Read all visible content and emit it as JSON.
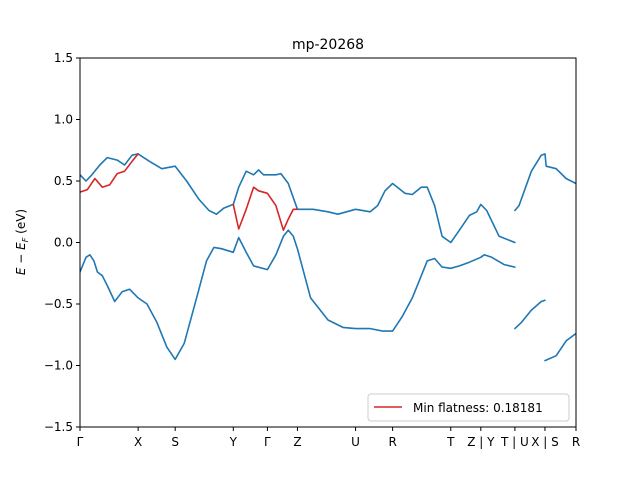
{
  "chart_data": {
    "type": "line",
    "title": "mp-20268",
    "xlabel": "",
    "ylabel": "E − E_F (eV)",
    "ylabel_parts": {
      "main": "E − E",
      "sub": "F",
      "unit": " (eV)"
    },
    "ylim": [
      -1.5,
      1.5
    ],
    "xlim": [
      0,
      1
    ],
    "y_ticks": [
      -1.5,
      -1.0,
      -0.5,
      0.0,
      0.5,
      1.0,
      1.5
    ],
    "y_tick_labels": [
      "−1.5",
      "−1.0",
      "−0.5",
      "0.0",
      "0.5",
      "1.0",
      "1.5"
    ],
    "k_ticks": [
      {
        "label": "Γ",
        "x": 0.0
      },
      {
        "label": "X",
        "x": 0.1172
      },
      {
        "label": "S",
        "x": 0.1919
      },
      {
        "label": "Y",
        "x": 0.3091
      },
      {
        "label": "Γ",
        "x": 0.3778
      },
      {
        "label": "Z",
        "x": 0.4384
      },
      {
        "label": "U",
        "x": 0.5556
      },
      {
        "label": "R",
        "x": 0.6303
      },
      {
        "label": "T",
        "x": 0.7475
      },
      {
        "label": "Z | Y",
        "x": 0.8081
      },
      {
        "label": "T | U",
        "x": 0.8768
      },
      {
        "label": "X | S",
        "x": 0.9374
      },
      {
        "label": "R",
        "x": 1.0
      }
    ],
    "colors": {
      "bands": "#1f77b4",
      "flat_band": "#d62728",
      "axes": "#000000"
    },
    "legend": {
      "label": "Min flatness: 0.18181",
      "placement": "lower-right"
    },
    "grid": false,
    "series": [
      {
        "color": "#1f77b4",
        "points": [
          [
            0.0,
            0.55
          ],
          [
            0.012,
            0.5
          ],
          [
            0.024,
            0.55
          ],
          [
            0.04,
            0.63
          ],
          [
            0.055,
            0.69
          ],
          [
            0.075,
            0.67
          ],
          [
            0.09,
            0.63
          ],
          [
            0.105,
            0.71
          ],
          [
            0.1172,
            0.72
          ],
          [
            0.14,
            0.66
          ],
          [
            0.165,
            0.6
          ],
          [
            0.1919,
            0.62
          ],
          [
            0.215,
            0.5
          ],
          [
            0.24,
            0.35
          ],
          [
            0.26,
            0.26
          ],
          [
            0.275,
            0.23
          ],
          [
            0.29,
            0.28
          ],
          [
            0.3091,
            0.31
          ],
          [
            0.32,
            0.45
          ],
          [
            0.335,
            0.58
          ],
          [
            0.35,
            0.55
          ],
          [
            0.36,
            0.59
          ],
          [
            0.37,
            0.55
          ],
          [
            0.3778,
            0.55
          ],
          [
            0.395,
            0.55
          ],
          [
            0.405,
            0.56
          ],
          [
            0.42,
            0.48
          ],
          [
            0.4384,
            0.27
          ],
          [
            0.47,
            0.27
          ],
          [
            0.5,
            0.25
          ],
          [
            0.52,
            0.23
          ],
          [
            0.5556,
            0.27
          ],
          [
            0.585,
            0.25
          ],
          [
            0.6,
            0.3
          ],
          [
            0.615,
            0.42
          ],
          [
            0.6303,
            0.48
          ],
          [
            0.655,
            0.4
          ],
          [
            0.67,
            0.39
          ],
          [
            0.688,
            0.45
          ],
          [
            0.7,
            0.45
          ],
          [
            0.715,
            0.3
          ],
          [
            0.73,
            0.05
          ],
          [
            0.7475,
            0.0
          ],
          [
            0.765,
            0.1
          ],
          [
            0.785,
            0.22
          ],
          [
            0.8,
            0.25
          ],
          [
            0.8081,
            0.31
          ],
          [
            0.82,
            0.26
          ],
          [
            0.845,
            0.05
          ],
          [
            0.8768,
            0.0
          ]
        ]
      },
      {
        "color": "#1f77b4",
        "points": [
          [
            0.8768,
            0.26
          ],
          [
            0.885,
            0.3
          ],
          [
            0.91,
            0.58
          ],
          [
            0.93,
            0.71
          ],
          [
            0.9374,
            0.72
          ],
          [
            0.94,
            0.62
          ],
          [
            0.96,
            0.6
          ],
          [
            0.98,
            0.52
          ],
          [
            1.0,
            0.48
          ]
        ]
      },
      {
        "color": "#1f77b4",
        "points": [
          [
            0.0,
            -0.24
          ],
          [
            0.012,
            -0.12
          ],
          [
            0.02,
            -0.1
          ],
          [
            0.028,
            -0.15
          ],
          [
            0.035,
            -0.24
          ],
          [
            0.045,
            -0.27
          ],
          [
            0.055,
            -0.35
          ],
          [
            0.07,
            -0.48
          ],
          [
            0.085,
            -0.4
          ],
          [
            0.1,
            -0.38
          ],
          [
            0.1172,
            -0.45
          ],
          [
            0.135,
            -0.5
          ],
          [
            0.155,
            -0.65
          ],
          [
            0.175,
            -0.85
          ],
          [
            0.1919,
            -0.95
          ],
          [
            0.21,
            -0.82
          ],
          [
            0.235,
            -0.45
          ],
          [
            0.255,
            -0.15
          ],
          [
            0.27,
            -0.04
          ],
          [
            0.285,
            -0.05
          ],
          [
            0.3091,
            -0.08
          ],
          [
            0.32,
            0.04
          ],
          [
            0.335,
            -0.08
          ],
          [
            0.35,
            -0.19
          ],
          [
            0.3778,
            -0.22
          ],
          [
            0.395,
            -0.1
          ],
          [
            0.41,
            0.05
          ],
          [
            0.42,
            0.1
          ],
          [
            0.43,
            0.05
          ],
          [
            0.4384,
            -0.05
          ],
          [
            0.465,
            -0.45
          ],
          [
            0.5,
            -0.63
          ],
          [
            0.53,
            -0.69
          ],
          [
            0.5556,
            -0.7
          ],
          [
            0.585,
            -0.7
          ],
          [
            0.61,
            -0.72
          ],
          [
            0.6303,
            -0.72
          ],
          [
            0.65,
            -0.6
          ],
          [
            0.67,
            -0.45
          ],
          [
            0.685,
            -0.3
          ],
          [
            0.7,
            -0.15
          ],
          [
            0.715,
            -0.13
          ],
          [
            0.73,
            -0.2
          ],
          [
            0.7475,
            -0.21
          ],
          [
            0.765,
            -0.19
          ],
          [
            0.785,
            -0.16
          ],
          [
            0.8081,
            -0.12
          ],
          [
            0.815,
            -0.1
          ],
          [
            0.83,
            -0.12
          ],
          [
            0.855,
            -0.18
          ],
          [
            0.8768,
            -0.2
          ]
        ]
      },
      {
        "color": "#1f77b4",
        "points": [
          [
            0.8768,
            -0.7
          ],
          [
            0.89,
            -0.65
          ],
          [
            0.91,
            -0.55
          ],
          [
            0.93,
            -0.48
          ],
          [
            0.9374,
            -0.47
          ]
        ]
      },
      {
        "color": "#1f77b4",
        "points": [
          [
            0.9374,
            -0.96
          ],
          [
            0.96,
            -0.92
          ],
          [
            0.98,
            -0.8
          ],
          [
            1.0,
            -0.74
          ]
        ]
      },
      {
        "color": "#d62728",
        "points": [
          [
            0.0,
            0.41
          ],
          [
            0.015,
            0.43
          ],
          [
            0.03,
            0.52
          ],
          [
            0.045,
            0.45
          ],
          [
            0.06,
            0.47
          ],
          [
            0.075,
            0.56
          ],
          [
            0.09,
            0.58
          ],
          [
            0.105,
            0.66
          ],
          [
            0.1172,
            0.72
          ]
        ]
      },
      {
        "color": "#d62728",
        "points": [
          [
            0.3091,
            0.31
          ],
          [
            0.32,
            0.11
          ],
          [
            0.335,
            0.27
          ],
          [
            0.35,
            0.45
          ],
          [
            0.36,
            0.42
          ],
          [
            0.3778,
            0.4
          ],
          [
            0.395,
            0.3
          ],
          [
            0.41,
            0.1
          ],
          [
            0.42,
            0.19
          ],
          [
            0.43,
            0.27
          ],
          [
            0.4384,
            0.27
          ]
        ]
      }
    ]
  }
}
